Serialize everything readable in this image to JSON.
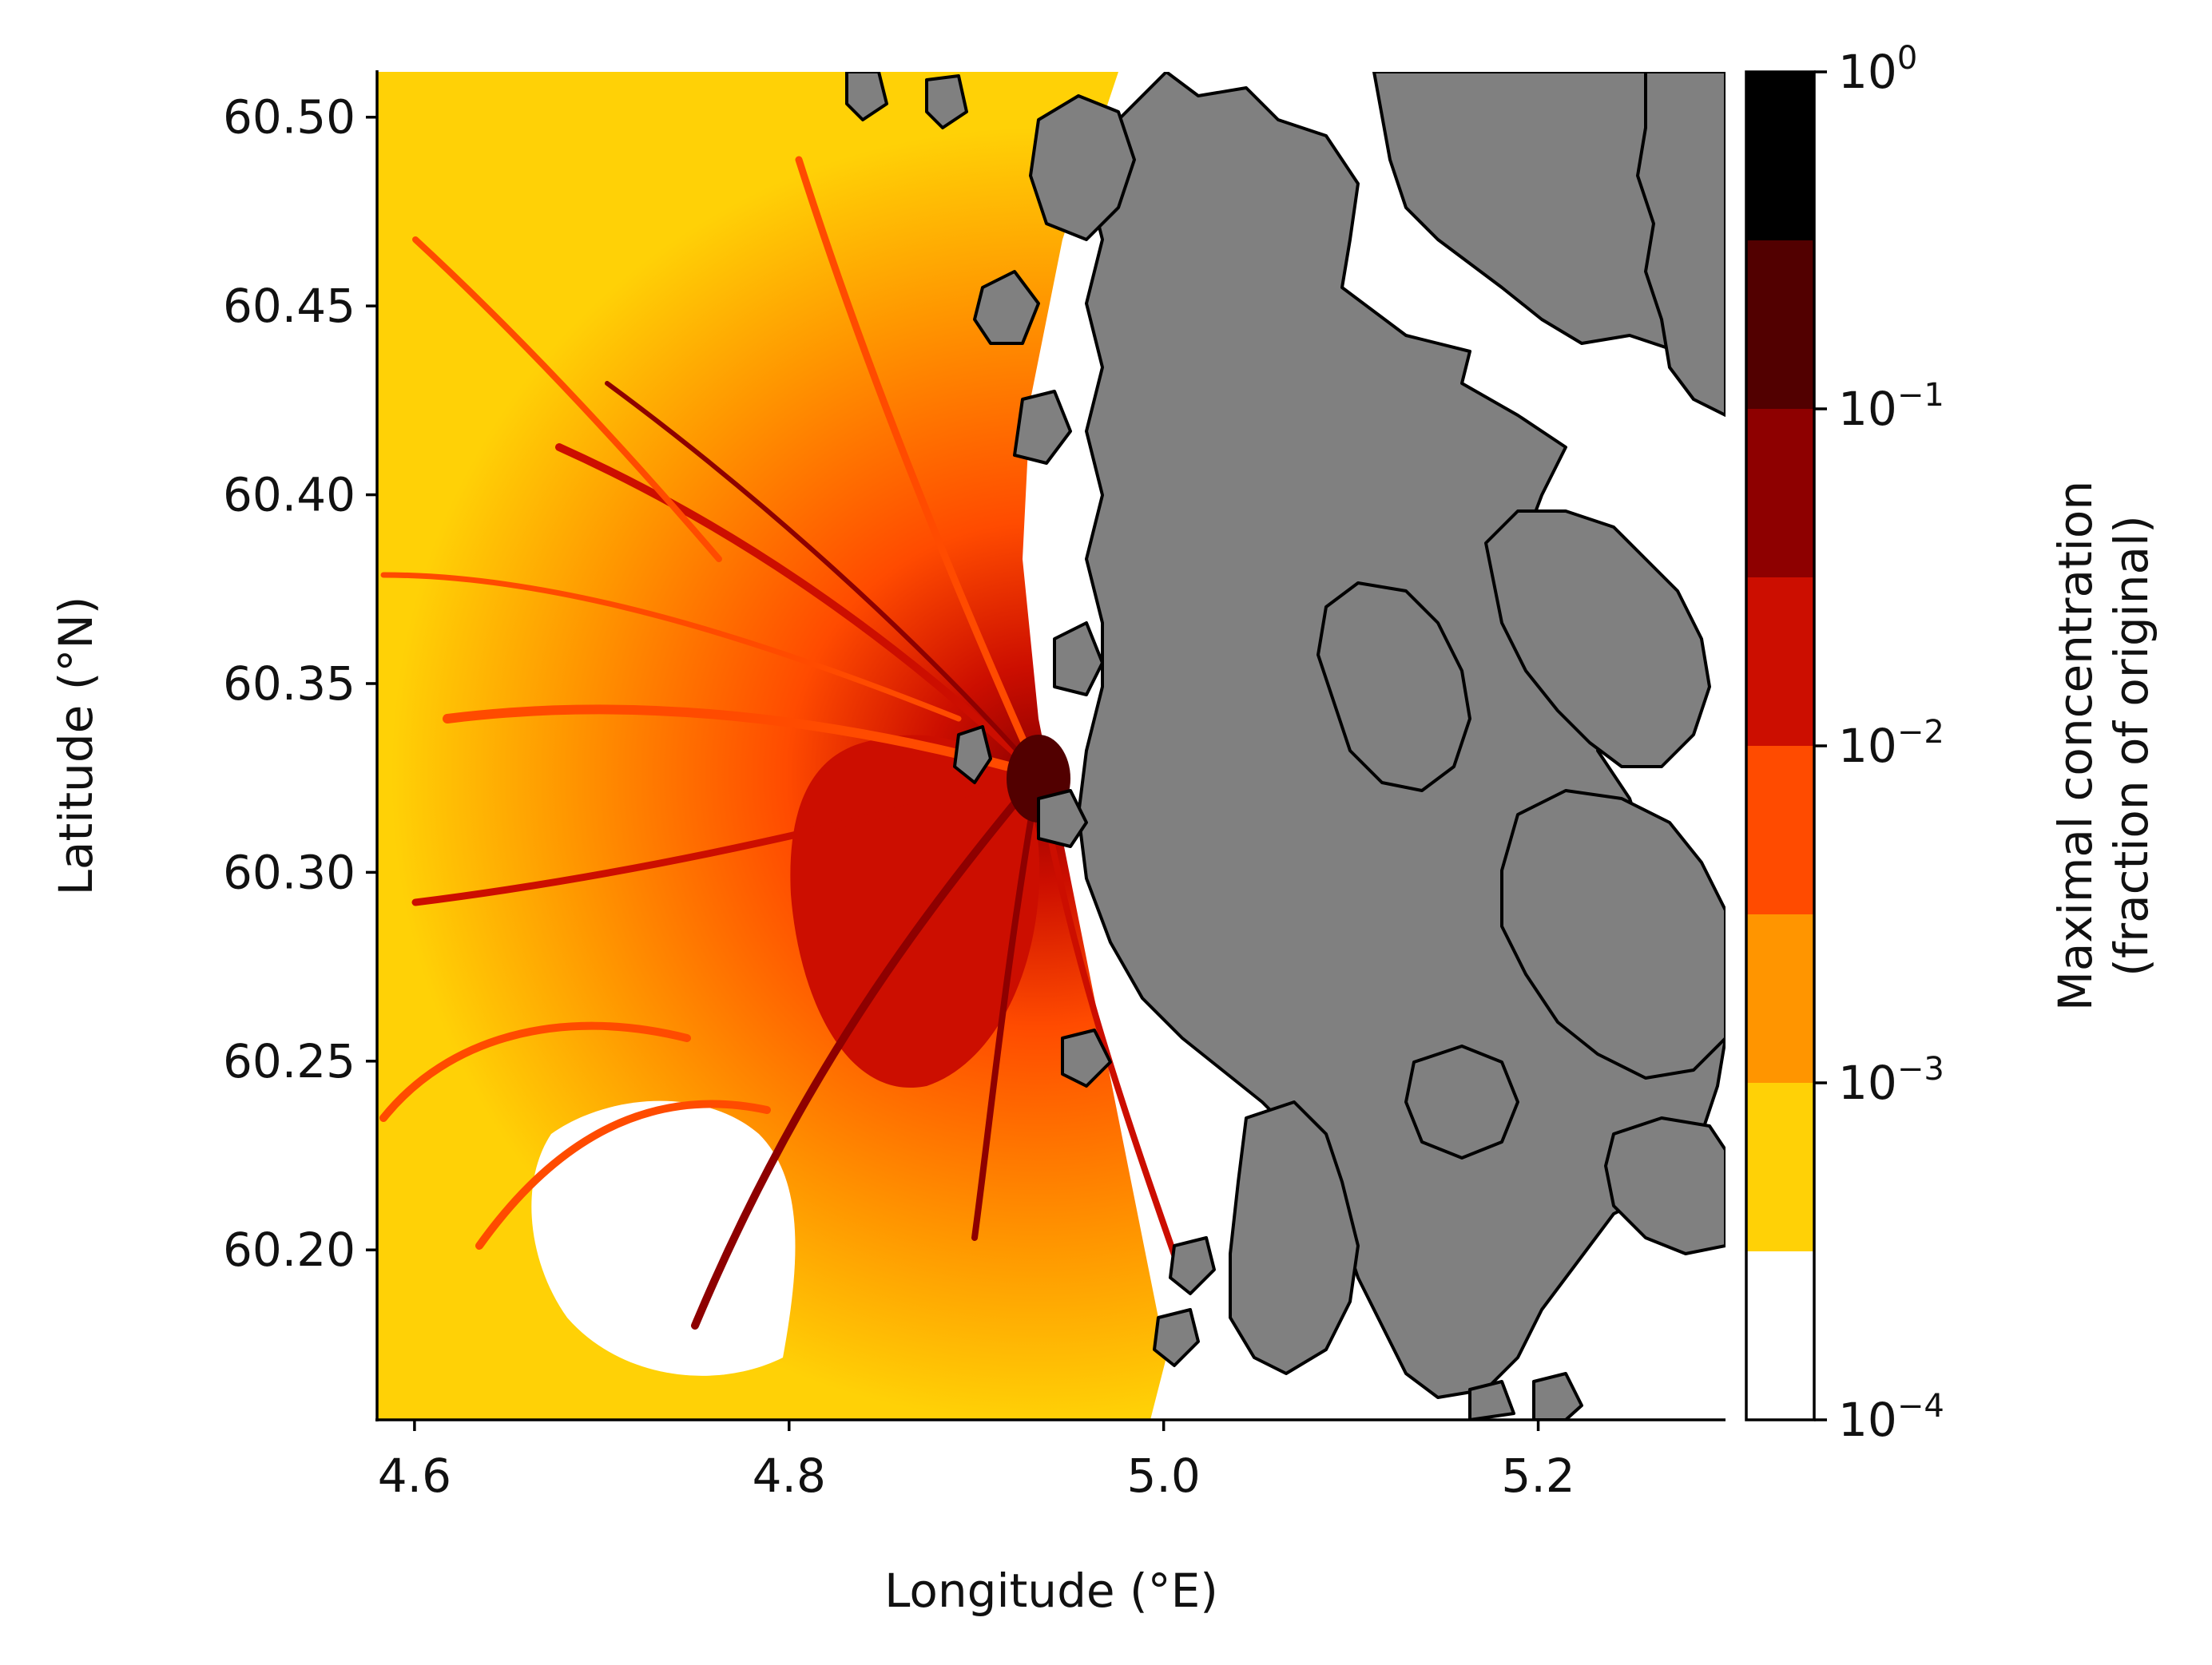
{
  "map": {
    "x_axis": {
      "label": "Longitude (°E)",
      "range": [
        4.58,
        5.3
      ],
      "ticks": [
        {
          "value": 4.6,
          "label": "4.6"
        },
        {
          "value": 4.8,
          "label": "4.8"
        },
        {
          "value": 5.0,
          "label": "5.0"
        },
        {
          "value": 5.2,
          "label": "5.2"
        }
      ]
    },
    "y_axis": {
      "label": "Latitude (°N)",
      "range": [
        60.155,
        60.512
      ],
      "ticks": [
        {
          "value": 60.2,
          "label": "60.20"
        },
        {
          "value": 60.25,
          "label": "60.25"
        },
        {
          "value": 60.3,
          "label": "60.30"
        },
        {
          "value": 60.35,
          "label": "60.35"
        },
        {
          "value": 60.4,
          "label": "60.40"
        },
        {
          "value": 60.45,
          "label": "60.45"
        },
        {
          "value": 60.5,
          "label": "60.50"
        }
      ]
    },
    "land_color": "#808080",
    "coast_color": "#000000",
    "source_center": {
      "lon": 4.93,
      "lat": 60.325
    }
  },
  "colorbar": {
    "label_line1": "Maximal concentration",
    "label_line2": "(fraction of original)",
    "scale": "log",
    "levels": [
      {
        "from_exp": -4.0,
        "to_exp": -3.5,
        "color": "#ffffff"
      },
      {
        "from_exp": -3.5,
        "to_exp": -3.0,
        "color": "#ffd106"
      },
      {
        "from_exp": -3.0,
        "to_exp": -2.5,
        "color": "#ff9500"
      },
      {
        "from_exp": -2.5,
        "to_exp": -2.0,
        "color": "#ff4b00"
      },
      {
        "from_exp": -2.0,
        "to_exp": -1.5,
        "color": "#cc0e00"
      },
      {
        "from_exp": -1.5,
        "to_exp": -1.0,
        "color": "#8e0000"
      },
      {
        "from_exp": -1.0,
        "to_exp": -0.5,
        "color": "#520000"
      },
      {
        "from_exp": -0.5,
        "to_exp": 0.0,
        "color": "#000000"
      }
    ],
    "ticks": [
      {
        "exp": 0,
        "base": "10",
        "sup": "0"
      },
      {
        "exp": -1,
        "base": "10",
        "sup": "−1"
      },
      {
        "exp": -2,
        "base": "10",
        "sup": "−2"
      },
      {
        "exp": -3,
        "base": "10",
        "sup": "−3"
      },
      {
        "exp": -4,
        "base": "10",
        "sup": "−4"
      }
    ]
  }
}
